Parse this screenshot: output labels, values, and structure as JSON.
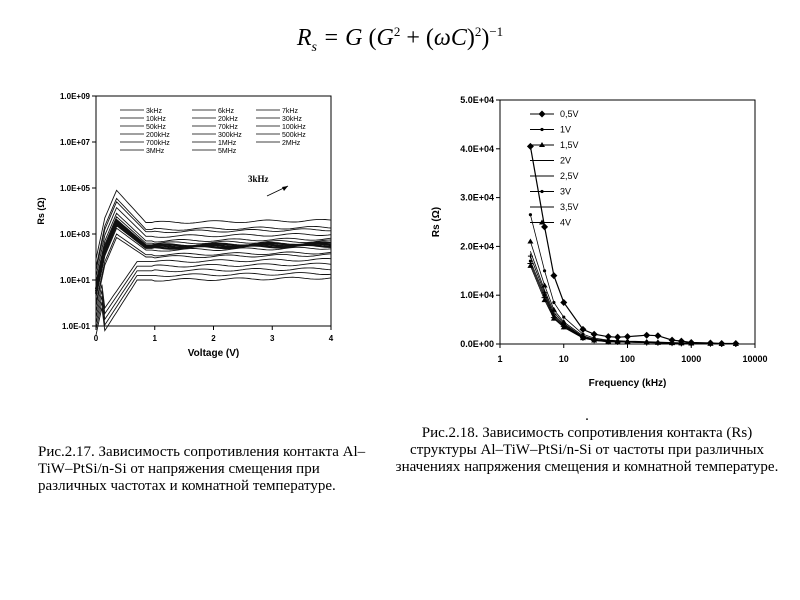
{
  "formula": "Rs = G (G² + (ωC)²)⁻¹",
  "captions": {
    "left": "Рис.2.17. Зависимость сопротивления контакта Al–TiW–PtSi/n-Si от напряжения смещения при различных частотах и комнатной температуре.",
    "right_dot": ".",
    "right": "Рис.2.18. Зависимость сопротивления контакта (Rs) структуры Al–TiW–PtSi/n-Si от частоты при различных значениях напряжения смещения и комнатной температуре."
  },
  "chart_data": [
    {
      "type": "line",
      "xlabel": "Voltage (V)",
      "ylabel": "Rs (Ω)",
      "xlim": [
        0,
        4
      ],
      "ylim_log10": [
        -1,
        9
      ],
      "x_ticks": [
        "0",
        "1",
        "2",
        "3",
        "4"
      ],
      "y_ticks": [
        "1.0E-01",
        "1.0E+01",
        "1.0E+03",
        "1.0E+05",
        "1.0E+07",
        "1.0E+09"
      ],
      "annotation": "3kHz",
      "legend": [
        "3kHz",
        "6kHz",
        "7kHz",
        "10kHz",
        "20kHz",
        "30kHz",
        "50kHz",
        "70kHz",
        "100kHz",
        "200kHz",
        "300kHz",
        "500kHz",
        "700kHz",
        "1MHz",
        "2MHz",
        "3MHz",
        "5MHz"
      ],
      "series_plateau_log10": [
        3.5,
        3.2,
        3.1,
        2.9,
        2.7,
        2.6,
        2.5,
        2.45,
        2.4,
        2.3,
        2.1,
        2.0,
        1.8,
        1.6,
        1.4,
        1.2,
        1.0
      ]
    },
    {
      "type": "line",
      "xscale": "log",
      "xlabel": "Frequency (kHz)",
      "ylabel": "Rs (Ω)",
      "xlim": [
        1,
        10000
      ],
      "ylim": [
        0,
        50000
      ],
      "x_ticks": [
        "1",
        "10",
        "100",
        "1000",
        "10000"
      ],
      "y_ticks": [
        "0.0E+00",
        "1.0E+04",
        "2.0E+04",
        "3.0E+04",
        "4.0E+04",
        "5.0E+04"
      ],
      "x": [
        3,
        5,
        7,
        10,
        20,
        30,
        50,
        70,
        100,
        200,
        300,
        500,
        700,
        1000,
        2000,
        3000,
        5000
      ],
      "series": [
        {
          "name": "0,5V",
          "values": [
            40500,
            24000,
            14000,
            8500,
            3000,
            2000,
            1500,
            1400,
            1500,
            1800,
            1700,
            800,
            600,
            300,
            200,
            100,
            100
          ]
        },
        {
          "name": "1V",
          "values": [
            26500,
            15000,
            8500,
            5500,
            2000,
            1200,
            800,
            700,
            600,
            500,
            400,
            300,
            250,
            200,
            100,
            80,
            50
          ]
        },
        {
          "name": "1,5V",
          "values": [
            21000,
            12000,
            7000,
            4500,
            1700,
            1000,
            700,
            600,
            500,
            400,
            300,
            250,
            200,
            150,
            80,
            60,
            40
          ]
        },
        {
          "name": "2V",
          "values": [
            19000,
            11000,
            6500,
            4200,
            1500,
            900,
            600,
            500,
            450,
            350,
            300,
            220,
            180,
            130,
            70,
            50,
            30
          ]
        },
        {
          "name": "2,5V",
          "values": [
            18000,
            10500,
            6000,
            4000,
            1400,
            850,
            550,
            480,
            420,
            330,
            280,
            200,
            160,
            120,
            60,
            45,
            30
          ]
        },
        {
          "name": "3V",
          "values": [
            17000,
            10000,
            5700,
            3800,
            1300,
            800,
            500,
            450,
            400,
            300,
            260,
            190,
            150,
            110,
            55,
            40,
            25
          ]
        },
        {
          "name": "3,5V",
          "values": [
            16500,
            9500,
            5400,
            3600,
            1250,
            760,
            480,
            430,
            380,
            290,
            250,
            180,
            140,
            100,
            50,
            35,
            20
          ]
        },
        {
          "name": "4V",
          "values": [
            16000,
            9000,
            5200,
            3400,
            1200,
            720,
            460,
            410,
            360,
            280,
            240,
            170,
            130,
            95,
            45,
            30,
            20
          ]
        }
      ]
    }
  ]
}
